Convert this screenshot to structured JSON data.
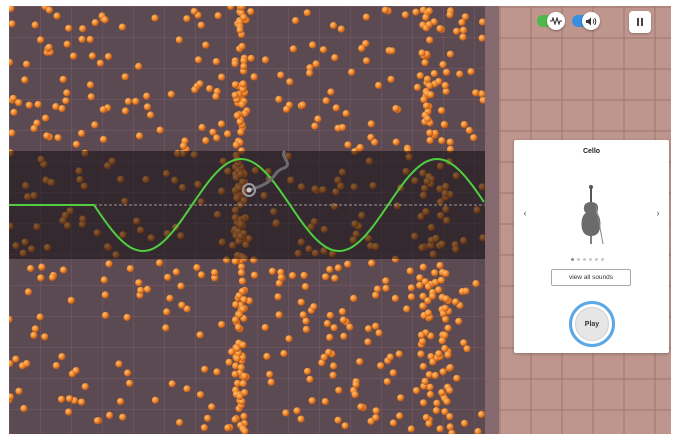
{
  "sim": {
    "wave_color": "#4fcf3f",
    "particle_color": "#f08a2c"
  },
  "controls": {
    "wave_toggle_icon": "waveform-icon",
    "wave_toggle_on": true,
    "sound_toggle_icon": "speaker-icon",
    "sound_toggle_on": true,
    "pause_icon": "pause-icon"
  },
  "sound_card": {
    "instrument": "Cello",
    "prev_icon": "chevron-left-icon",
    "next_icon": "chevron-right-icon",
    "image_icon": "cello-icon",
    "page_count": 6,
    "page_current": 1,
    "view_all_label": "view all sounds",
    "play_label": "Play",
    "accent_color": "#5aa7e3"
  }
}
